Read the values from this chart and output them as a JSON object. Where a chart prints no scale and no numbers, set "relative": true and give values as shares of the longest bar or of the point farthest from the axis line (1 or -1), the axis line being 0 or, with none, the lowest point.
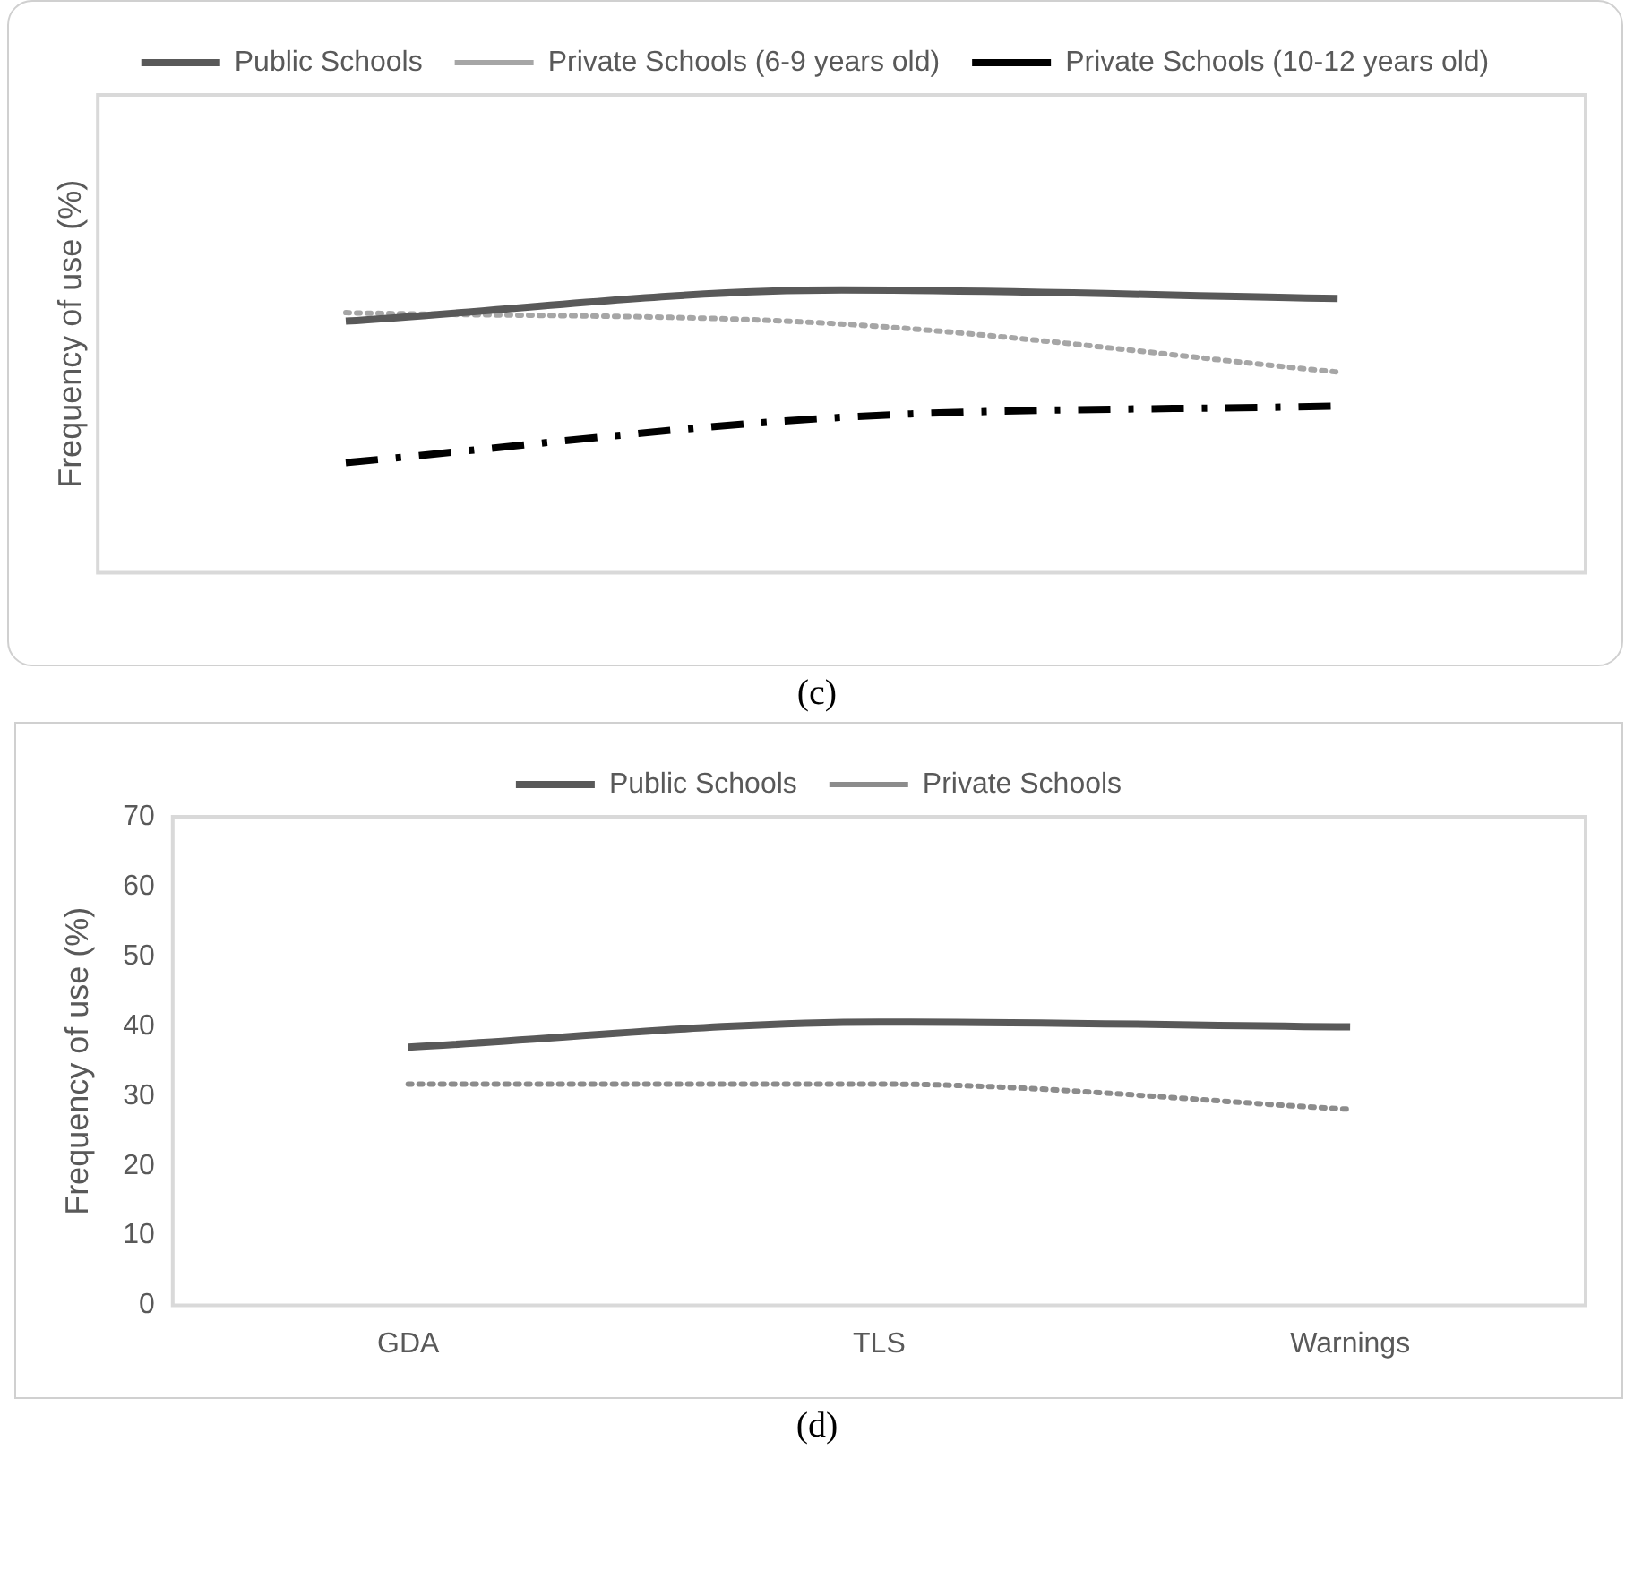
{
  "chart_data": [
    {
      "type": "line",
      "ylabel": "Frequency of use (%)",
      "categories": [
        null,
        null,
        null
      ],
      "relative": true,
      "grid": false,
      "legend": "top",
      "marker": "none",
      "annotations": [
        "(c)"
      ],
      "series": [
        {
          "name": "Public Schools",
          "color": "#595959",
          "line_style": "solid",
          "values": [
            0.89,
            1,
            0.97
          ]
        },
        {
          "name": "Private Schools (6-9 years old)",
          "color": "#a6a6a6",
          "line_style": "dotted",
          "values": [
            0.92,
            0.88,
            0.71
          ]
        },
        {
          "name": "Private Schools (10-12 years old)",
          "color": "#000000",
          "line_style": "dashdot",
          "values": [
            0.39,
            0.55,
            0.59
          ]
        }
      ]
    },
    {
      "type": "line",
      "ylabel": "Frequency of use (%)",
      "categories": [
        "GDA",
        "TLS",
        "Warnings"
      ],
      "ylim": [
        0,
        70
      ],
      "yticks": [
        0,
        10,
        20,
        30,
        40,
        50,
        60,
        70
      ],
      "grid": false,
      "legend": "top",
      "marker": "none",
      "annotations": [
        "(d)"
      ],
      "series": [
        {
          "name": "Public Schools",
          "color": "#595959",
          "line_style": "solid",
          "values": [
            37,
            40.6,
            39.9
          ]
        },
        {
          "name": "Private Schools",
          "color": "#8c8c8c",
          "line_style": "dotted",
          "values": [
            31.7,
            31.7,
            28.1
          ]
        }
      ]
    }
  ]
}
